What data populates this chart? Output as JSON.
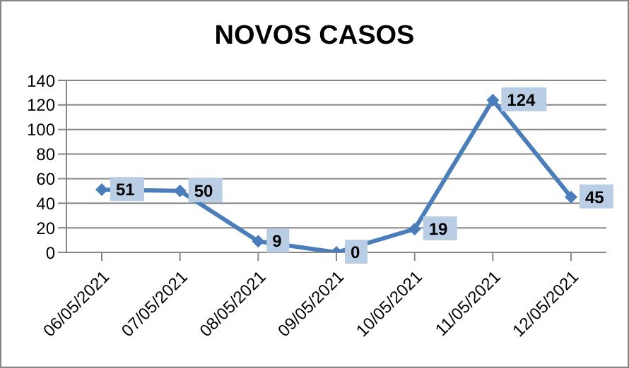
{
  "chart_data": {
    "type": "line",
    "title": "NOVOS CASOS",
    "categories": [
      "06/05/2021",
      "07/05/2021",
      "08/05/2021",
      "09/05/2021",
      "10/05/2021",
      "11/05/2021",
      "12/05/2021"
    ],
    "series": [
      {
        "color": "#4a7ebb",
        "values": [
          51,
          50,
          9,
          0,
          19,
          124,
          45
        ]
      }
    ],
    "ylim": [
      0,
      140
    ],
    "yticks": [
      0,
      20,
      40,
      60,
      80,
      100,
      120,
      140
    ],
    "grid": "y",
    "marker": "diamond",
    "line_style": "solid",
    "data_labels": true,
    "legend": false
  }
}
